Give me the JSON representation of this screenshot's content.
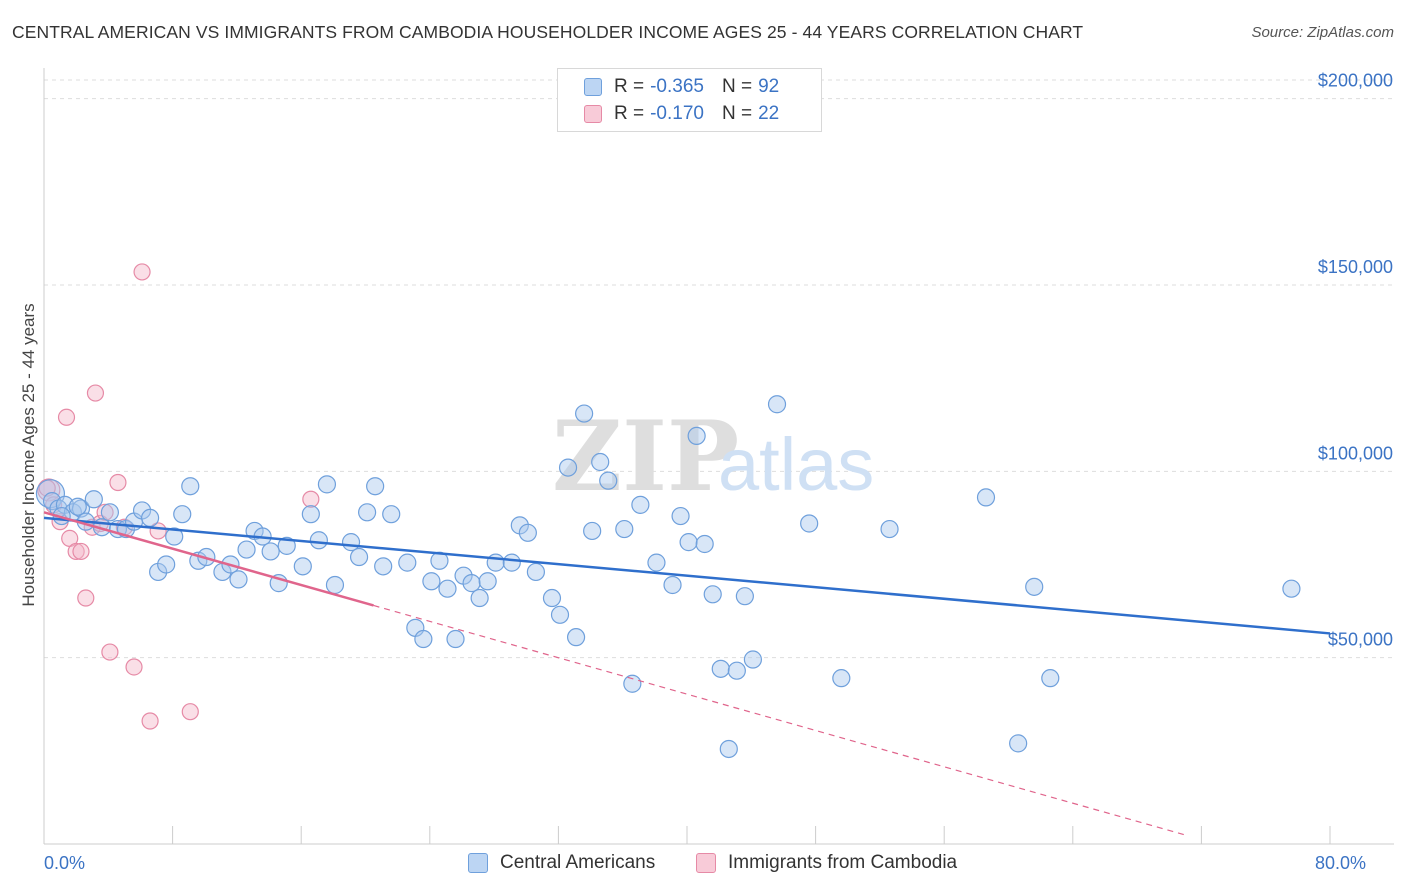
{
  "header": {
    "title": "CENTRAL AMERICAN VS IMMIGRANTS FROM CAMBODIA HOUSEHOLDER INCOME AGES 25 - 44 YEARS CORRELATION CHART",
    "source": "Source: ZipAtlas.com"
  },
  "watermark": {
    "zip": "ZIP",
    "atlas": "atlas"
  },
  "legend": {
    "r_label": "R =",
    "n_label": "N =",
    "rows": [
      {
        "r": "-0.365",
        "n": "92",
        "color": "#a9c8ee"
      },
      {
        "r": "-0.170",
        "n": "22",
        "color": "#f5b8c9"
      }
    ]
  },
  "colors": {
    "blue_fill": "#a9c8ee",
    "blue_stroke": "#6fa0dc",
    "blue_line": "#2f6fcc",
    "pink_fill": "#f5b8c9",
    "pink_stroke": "#e68aa6",
    "pink_line": "#e0658c",
    "grid": "#dddddd",
    "axis_text": "#3b73c4"
  },
  "chart_data": {
    "type": "scatter",
    "title": "CENTRAL AMERICAN VS IMMIGRANTS FROM CAMBODIA HOUSEHOLDER INCOME AGES 25 - 44 YEARS CORRELATION CHART",
    "ylabel": "Householder Income Ages 25 - 44 years",
    "xlabel": "",
    "xlim": [
      0,
      80
    ],
    "ylim": [
      0,
      205000
    ],
    "x_ticks": [
      0,
      80
    ],
    "x_tick_labels": [
      "0.0%",
      "80.0%"
    ],
    "y_ticks": [
      50000,
      100000,
      150000,
      200000
    ],
    "y_tick_labels": [
      "$50,000",
      "$100,000",
      "$150,000",
      "$200,000"
    ],
    "grid": true,
    "legend_position": "top-center",
    "series": [
      {
        "name": "Central Americans",
        "r": -0.365,
        "n": 92,
        "trend": {
          "x": [
            0,
            80
          ],
          "y": [
            87500,
            56500
          ],
          "style": "solid"
        },
        "points": [
          [
            0.4,
            94000
          ],
          [
            0.5,
            92000
          ],
          [
            0.9,
            90000
          ],
          [
            1.3,
            91000
          ],
          [
            1.8,
            89000
          ],
          [
            2.3,
            90000
          ],
          [
            2.6,
            86500
          ],
          [
            3.1,
            92500
          ],
          [
            3.6,
            85000
          ],
          [
            4.1,
            89000
          ],
          [
            4.6,
            84500
          ],
          [
            5.1,
            84500
          ],
          [
            5.6,
            86500
          ],
          [
            6.1,
            89500
          ],
          [
            6.6,
            87500
          ],
          [
            7.1,
            73000
          ],
          [
            7.6,
            75000
          ],
          [
            8.1,
            82500
          ],
          [
            8.6,
            88500
          ],
          [
            9.1,
            96000
          ],
          [
            9.6,
            76000
          ],
          [
            10.1,
            77000
          ],
          [
            11.1,
            73000
          ],
          [
            11.6,
            75000
          ],
          [
            12.1,
            71000
          ],
          [
            12.6,
            79000
          ],
          [
            13.1,
            84000
          ],
          [
            13.6,
            82500
          ],
          [
            14.1,
            78500
          ],
          [
            14.6,
            70000
          ],
          [
            15.1,
            80000
          ],
          [
            16.1,
            74500
          ],
          [
            16.6,
            88500
          ],
          [
            17.1,
            81500
          ],
          [
            17.6,
            96500
          ],
          [
            18.1,
            69500
          ],
          [
            19.1,
            81000
          ],
          [
            19.6,
            77000
          ],
          [
            20.1,
            89000
          ],
          [
            20.6,
            96000
          ],
          [
            21.1,
            74500
          ],
          [
            21.6,
            88500
          ],
          [
            22.6,
            75500
          ],
          [
            23.1,
            58000
          ],
          [
            23.6,
            55000
          ],
          [
            24.1,
            70500
          ],
          [
            24.6,
            76000
          ],
          [
            25.1,
            68500
          ],
          [
            25.6,
            55000
          ],
          [
            26.1,
            72000
          ],
          [
            26.6,
            70000
          ],
          [
            27.1,
            66000
          ],
          [
            27.6,
            70500
          ],
          [
            28.1,
            75500
          ],
          [
            29.1,
            75500
          ],
          [
            29.6,
            85500
          ],
          [
            30.1,
            83500
          ],
          [
            30.6,
            73000
          ],
          [
            31.6,
            66000
          ],
          [
            32.1,
            61500
          ],
          [
            32.6,
            101000
          ],
          [
            33.1,
            55500
          ],
          [
            33.6,
            115500
          ],
          [
            34.1,
            84000
          ],
          [
            34.6,
            102500
          ],
          [
            35.1,
            97500
          ],
          [
            36.1,
            84500
          ],
          [
            36.6,
            43000
          ],
          [
            37.1,
            91000
          ],
          [
            38.1,
            75500
          ],
          [
            39.1,
            69500
          ],
          [
            39.6,
            88000
          ],
          [
            40.1,
            81000
          ],
          [
            40.6,
            109500
          ],
          [
            41.1,
            80500
          ],
          [
            41.6,
            67000
          ],
          [
            42.1,
            47000
          ],
          [
            42.6,
            25500
          ],
          [
            43.1,
            46500
          ],
          [
            43.6,
            66500
          ],
          [
            44.1,
            49500
          ],
          [
            45.6,
            118000
          ],
          [
            47.6,
            86000
          ],
          [
            49.6,
            44500
          ],
          [
            52.6,
            84500
          ],
          [
            58.6,
            93000
          ],
          [
            60.6,
            27000
          ],
          [
            61.6,
            69000
          ],
          [
            62.6,
            44500
          ],
          [
            77.6,
            68500
          ],
          [
            1.1,
            88000
          ],
          [
            2.1,
            90500
          ]
        ]
      },
      {
        "name": "Immigrants from Cambodia",
        "r": -0.17,
        "n": 22,
        "trend": {
          "x": [
            0,
            20.5
          ],
          "y": [
            89000,
            64000
          ],
          "style": "solid",
          "extended_to_x": 71,
          "extended_style": "dashed"
        },
        "points": [
          [
            0.3,
            95000
          ],
          [
            0.6,
            91000
          ],
          [
            1.0,
            86500
          ],
          [
            1.4,
            114500
          ],
          [
            1.6,
            82000
          ],
          [
            2.0,
            78500
          ],
          [
            2.3,
            78500
          ],
          [
            2.6,
            66000
          ],
          [
            3.0,
            85000
          ],
          [
            3.2,
            121000
          ],
          [
            3.5,
            86000
          ],
          [
            3.8,
            89000
          ],
          [
            4.1,
            51500
          ],
          [
            4.6,
            97000
          ],
          [
            5.0,
            85000
          ],
          [
            5.6,
            47500
          ],
          [
            6.1,
            153500
          ],
          [
            6.6,
            33000
          ],
          [
            7.1,
            84000
          ],
          [
            9.1,
            35500
          ],
          [
            16.6,
            92500
          ],
          [
            0.2,
            95500
          ]
        ]
      }
    ]
  },
  "bottom_legend": [
    "Central Americans",
    "Immigrants from Cambodia"
  ]
}
